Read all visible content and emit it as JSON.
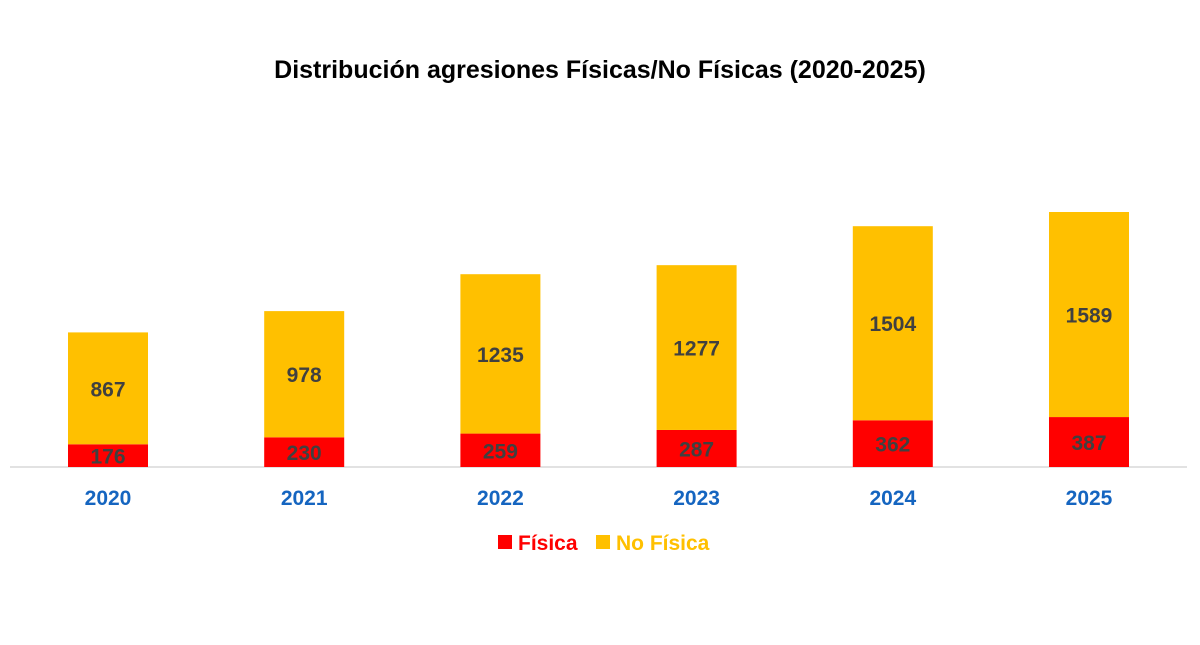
{
  "chart_data": {
    "type": "bar",
    "stacked": true,
    "title": "Distribución agresiones Físicas/No Físicas (2020-2025)",
    "categories": [
      "2020",
      "2021",
      "2022",
      "2023",
      "2024",
      "2025"
    ],
    "series": [
      {
        "name": "Física",
        "color": "#FF0000",
        "values": [
          176,
          230,
          259,
          287,
          362,
          387
        ]
      },
      {
        "name": "No Física",
        "color": "#FFC000",
        "values": [
          867,
          978,
          1235,
          1277,
          1504,
          1589
        ]
      }
    ],
    "xlabel": "",
    "ylabel": "",
    "ylim": [
      0,
      1976
    ],
    "grid": false,
    "legend_position": "bottom"
  }
}
